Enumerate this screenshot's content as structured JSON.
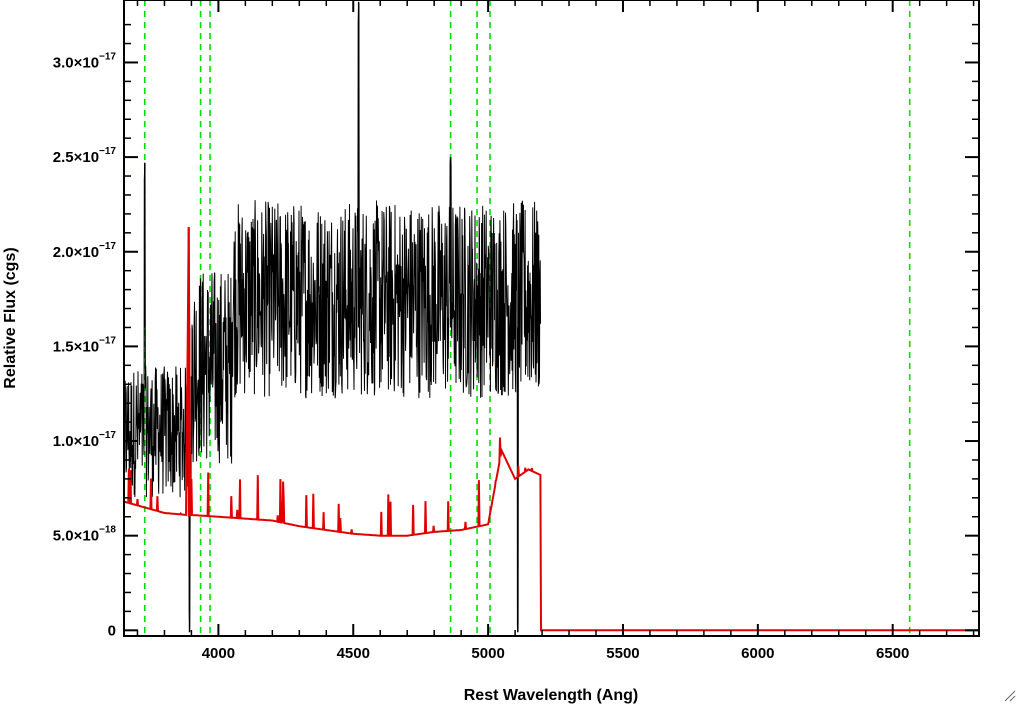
{
  "chart_data": {
    "type": "line",
    "title": "",
    "xlabel": "Rest Wavelength (Ang)",
    "ylabel": "Relative Flux (cgs)",
    "xlim": [
      3650,
      6820
    ],
    "ylim": [
      -3e-19,
      3.33e-17
    ],
    "x_ticks": [
      {
        "value": 4000,
        "label": "4000"
      },
      {
        "value": 4500,
        "label": "4500"
      },
      {
        "value": 5000,
        "label": "5000"
      },
      {
        "value": 5500,
        "label": "5500"
      },
      {
        "value": 6000,
        "label": "6000"
      },
      {
        "value": 6500,
        "label": "6500"
      }
    ],
    "y_ticks": [
      {
        "value": 0,
        "mantissa": "0",
        "exp": ""
      },
      {
        "value": 5e-18,
        "mantissa": "5.0×10",
        "exp": "−18"
      },
      {
        "value": 1e-17,
        "mantissa": "1.0×10",
        "exp": "−17"
      },
      {
        "value": 1.5e-17,
        "mantissa": "1.5×10",
        "exp": "−17"
      },
      {
        "value": 2e-17,
        "mantissa": "2.0×10",
        "exp": "−17"
      },
      {
        "value": 2.5e-17,
        "mantissa": "2.5×10",
        "exp": "−17"
      },
      {
        "value": 3e-17,
        "mantissa": "3.0×10",
        "exp": "−17"
      }
    ],
    "reference_lines_x": [
      3727,
      3934,
      3969,
      4861,
      4959,
      5007,
      6563
    ],
    "grid": false,
    "series": [
      {
        "color": "#000000",
        "style": "noisy spectrum",
        "data_range": [
          3650,
          5195
        ],
        "points": [
          [
            3650,
            1.3e-17
          ],
          [
            3700,
            9e-18
          ],
          [
            3727,
            2.47e-17
          ],
          [
            3760,
            8e-18
          ],
          [
            3800,
            1.1e-17
          ],
          [
            3850,
            9e-18
          ],
          [
            3880,
            1.2e-17
          ],
          [
            3893,
            -1e-19
          ],
          [
            3900,
            1.6e-17
          ],
          [
            3934,
            2.2e-17
          ],
          [
            3969,
            1.8e-17
          ],
          [
            4000,
            1.3e-17
          ],
          [
            4050,
            1.6e-17
          ],
          [
            4100,
            1.9e-17
          ],
          [
            4150,
            2.2e-17
          ],
          [
            4200,
            1.8e-17
          ],
          [
            4300,
            1.7e-17
          ],
          [
            4400,
            1.8e-17
          ],
          [
            4500,
            1.85e-17
          ],
          [
            4520,
            3.33e-17
          ],
          [
            4600,
            1.8e-17
          ],
          [
            4700,
            1.9e-17
          ],
          [
            4800,
            1.8e-17
          ],
          [
            4861,
            2.5e-17
          ],
          [
            4900,
            1.7e-17
          ],
          [
            4959,
            1.6e-17
          ],
          [
            5007,
            1.9e-17
          ],
          [
            5050,
            1.6e-17
          ],
          [
            5110,
            -1e-19
          ],
          [
            5150,
            1.5e-17
          ],
          [
            5195,
            1.2e-17
          ]
        ]
      },
      {
        "color": "#e00000",
        "style": "error / model curve",
        "data_range": [
          3650,
          6820
        ],
        "points": [
          [
            3650,
            6.8e-18
          ],
          [
            3700,
            6.6e-18
          ],
          [
            3800,
            6.2e-18
          ],
          [
            3880,
            6.1e-18
          ],
          [
            3890,
            2.13e-17
          ],
          [
            3895,
            6.1e-18
          ],
          [
            4000,
            6e-18
          ],
          [
            4100,
            5.9e-18
          ],
          [
            4200,
            5.8e-18
          ],
          [
            4300,
            5.5e-18
          ],
          [
            4400,
            5.3e-18
          ],
          [
            4500,
            5.1e-18
          ],
          [
            4600,
            5e-18
          ],
          [
            4700,
            5e-18
          ],
          [
            4800,
            5.2e-18
          ],
          [
            4900,
            5.3e-18
          ],
          [
            5000,
            5.6e-18
          ],
          [
            5050,
            9.5e-18
          ],
          [
            5100,
            8e-18
          ],
          [
            5150,
            8.5e-18
          ],
          [
            5195,
            8.2e-18
          ],
          [
            5196,
            0
          ],
          [
            6820,
            0
          ]
        ]
      }
    ]
  },
  "colors": {
    "axis": "#000000",
    "spectrum": "#000000",
    "model": "#e00000",
    "reference_lines": "#00e000"
  }
}
